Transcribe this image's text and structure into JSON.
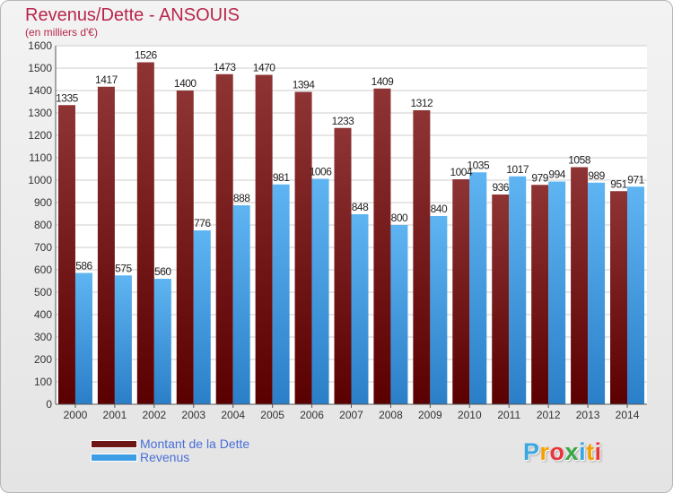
{
  "header": {
    "title": "Revenus/Dette - ANSOUIS",
    "subtitle": "(en milliers d'€)"
  },
  "colors": {
    "dette": "#6e1515",
    "revenus": "#3d9ee6",
    "grid": "#cccccc"
  },
  "chart_data": {
    "type": "bar",
    "categories": [
      "2000",
      "2001",
      "2002",
      "2003",
      "2004",
      "2005",
      "2006",
      "2007",
      "2008",
      "2009",
      "2010",
      "2011",
      "2012",
      "2013",
      "2014"
    ],
    "series": [
      {
        "name": "Montant de la Dette",
        "values": [
          1335,
          1417,
          1526,
          1400,
          1473,
          1470,
          1394,
          1233,
          1409,
          1312,
          1004,
          936,
          979,
          1058,
          951
        ]
      },
      {
        "name": "Revenus",
        "values": [
          586,
          575,
          560,
          776,
          888,
          981,
          1006,
          848,
          800,
          840,
          1035,
          1017,
          994,
          989,
          971
        ]
      }
    ],
    "yticks": [
      0,
      100,
      200,
      300,
      400,
      500,
      600,
      700,
      800,
      900,
      1000,
      1100,
      1200,
      1300,
      1400,
      1500,
      1600
    ],
    "ylim": [
      0,
      1600
    ],
    "grid": true,
    "legend": "bottom-left"
  },
  "legend": {
    "items": [
      {
        "label": "Montant de la Dette"
      },
      {
        "label": "Revenus"
      }
    ]
  },
  "logo": {
    "letters": [
      "P",
      "r",
      "o",
      "x",
      "i",
      "t",
      "i"
    ],
    "colors": [
      "#3aa7e0",
      "#f5a000",
      "#e8363c",
      "#37a844",
      "#3aa7e0",
      "#f5a000",
      "#e8363c"
    ]
  }
}
